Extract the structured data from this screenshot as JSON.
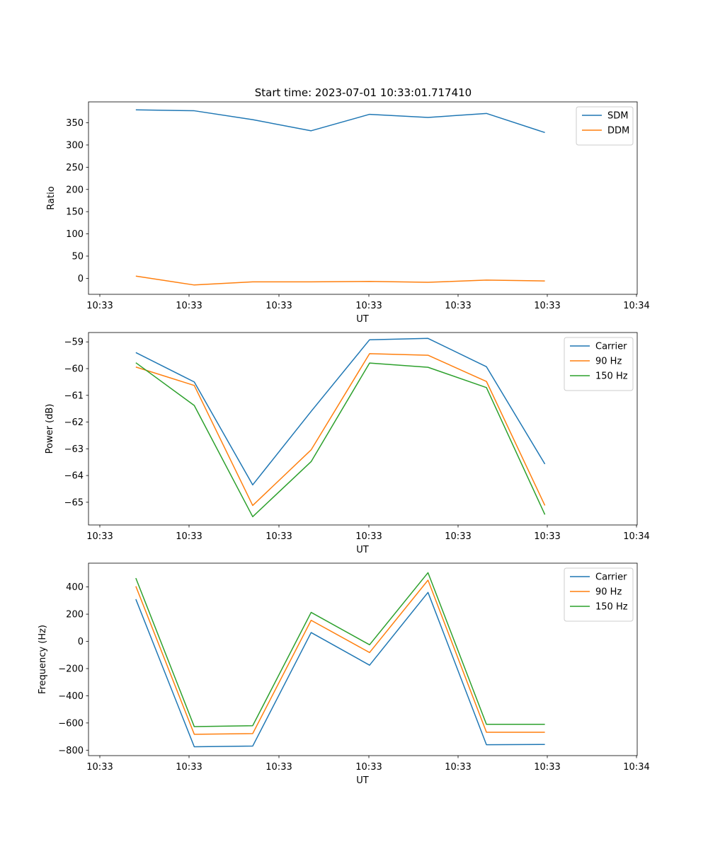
{
  "figure_title": "Start time: 2023-07-01 10:33:01.717410",
  "colors": {
    "blue": "#1f77b4",
    "orange": "#ff7f0e",
    "green": "#2ca02c"
  },
  "chart_data": [
    {
      "type": "line",
      "title": "Start time: 2023-07-01 10:33:01.717410",
      "xlabel": "UT",
      "ylabel": "Ratio",
      "x_tick_labels": [
        "10:33",
        "10:33",
        "10:33",
        "10:33",
        "10:33",
        "10:33",
        "10:34"
      ],
      "x": [
        1,
        2,
        3,
        4,
        5,
        6,
        7,
        8
      ],
      "xlim": [
        0.19,
        9.58
      ],
      "ylim": [
        -36,
        397
      ],
      "y_ticks": [
        0,
        50,
        100,
        150,
        200,
        250,
        300,
        350
      ],
      "legend": "top-right",
      "series": [
        {
          "name": "SDM",
          "color": "#1f77b4",
          "values": [
            379,
            377,
            357,
            332,
            369,
            362,
            371,
            328
          ]
        },
        {
          "name": "DDM",
          "color": "#ff7f0e",
          "values": [
            5,
            -15,
            -8,
            -8,
            -7,
            -9,
            -4,
            -6
          ]
        }
      ]
    },
    {
      "type": "line",
      "xlabel": "UT",
      "ylabel": "Power (dB)",
      "x_tick_labels": [
        "10:33",
        "10:33",
        "10:33",
        "10:33",
        "10:33",
        "10:33",
        "10:34"
      ],
      "x": [
        1,
        2,
        3,
        4,
        5,
        6,
        7,
        8
      ],
      "xlim": [
        0.19,
        9.58
      ],
      "ylim": [
        -65.85,
        -58.65
      ],
      "y_ticks": [
        -65,
        -64,
        -63,
        -62,
        -61,
        -60,
        -59
      ],
      "legend": "top-right",
      "series": [
        {
          "name": "Carrier",
          "color": "#1f77b4",
          "values": [
            -59.4,
            -60.5,
            -64.35,
            -61.6,
            -58.92,
            -58.87,
            -59.93,
            -63.57
          ]
        },
        {
          "name": "90 Hz",
          "color": "#ff7f0e",
          "values": [
            -59.94,
            -60.63,
            -65.12,
            -63.04,
            -59.44,
            -59.5,
            -60.48,
            -65.12
          ]
        },
        {
          "name": "150 Hz",
          "color": "#2ca02c",
          "values": [
            -59.78,
            -61.38,
            -65.54,
            -63.48,
            -59.79,
            -59.95,
            -60.71,
            -65.46
          ]
        }
      ]
    },
    {
      "type": "line",
      "xlabel": "UT",
      "ylabel": "Frequency (Hz)",
      "x_tick_labels": [
        "10:33",
        "10:33",
        "10:33",
        "10:33",
        "10:33",
        "10:33",
        "10:34"
      ],
      "x": [
        1,
        2,
        3,
        4,
        5,
        6,
        7,
        8
      ],
      "xlim": [
        0.19,
        9.58
      ],
      "ylim": [
        -840,
        575
      ],
      "y_ticks": [
        -800,
        -600,
        -400,
        -200,
        0,
        200,
        400
      ],
      "legend": "top-right",
      "series": [
        {
          "name": "Carrier",
          "color": "#1f77b4",
          "values": [
            310,
            -775,
            -770,
            65,
            -175,
            360,
            -760,
            -758
          ]
        },
        {
          "name": "90 Hz",
          "color": "#ff7f0e",
          "values": [
            405,
            -683,
            -678,
            155,
            -82,
            450,
            -668,
            -668
          ]
        },
        {
          "name": "150 Hz",
          "color": "#2ca02c",
          "values": [
            465,
            -627,
            -620,
            213,
            -25,
            505,
            -610,
            -610
          ]
        }
      ]
    }
  ]
}
